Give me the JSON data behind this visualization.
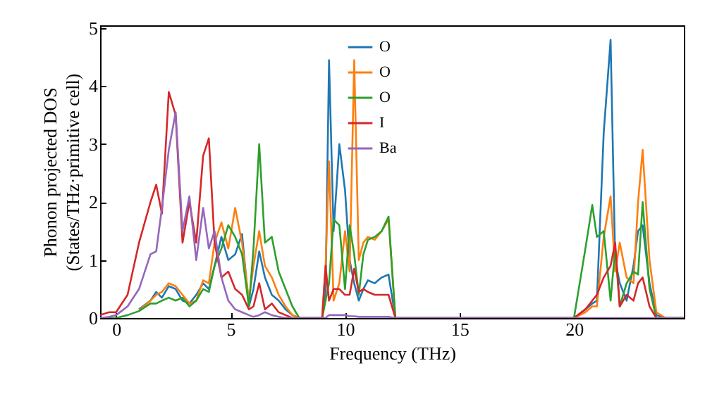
{
  "chart_data": {
    "type": "line",
    "xlabel": "Frequency (THz)",
    "ylabel": "Phonon projected DOS\n(States/THz·primitive cell)",
    "x": [
      -0.7,
      -0.3,
      0,
      0.5,
      1,
      1.5,
      1.75,
      2,
      2.3,
      2.6,
      2.9,
      3.2,
      3.5,
      3.8,
      4.05,
      4.3,
      4.6,
      4.9,
      5.2,
      5.5,
      5.8,
      6.0,
      6.25,
      6.5,
      6.8,
      7.1,
      7.4,
      7.7,
      8.0,
      9.0,
      9.15,
      9.3,
      9.5,
      9.75,
      10.0,
      10.2,
      10.4,
      10.6,
      10.8,
      11.0,
      11.3,
      11.6,
      11.9,
      12.2,
      20.0,
      20.5,
      20.8,
      21.0,
      21.3,
      21.6,
      21.8,
      22.0,
      22.3,
      22.6,
      22.8,
      23.0,
      23.3,
      23.6,
      24.0,
      24.8
    ],
    "series": [
      {
        "name": "O",
        "color": "#1f77b4",
        "values": [
          null,
          null,
          null,
          null,
          0.15,
          0.3,
          0.45,
          0.35,
          0.55,
          0.5,
          0.3,
          0.25,
          0.4,
          0.6,
          0.5,
          0.9,
          1.4,
          1.0,
          1.1,
          1.45,
          0.2,
          0.5,
          1.15,
          0.7,
          0.4,
          0.3,
          0.15,
          0.05,
          0,
          0,
          0.5,
          4.45,
          1.5,
          3.0,
          2.2,
          1.0,
          0.6,
          0.3,
          0.5,
          0.65,
          0.6,
          0.7,
          0.75,
          0,
          0,
          0.15,
          0.25,
          0.3,
          3.2,
          4.8,
          1.0,
          0.6,
          0.3,
          0.9,
          1.5,
          1.6,
          0.6,
          0.05,
          0,
          0
        ]
      },
      {
        "name": "O",
        "color": "#ff7f0e",
        "values": [
          null,
          null,
          null,
          null,
          0.13,
          0.3,
          0.4,
          0.45,
          0.6,
          0.55,
          0.4,
          0.25,
          0.3,
          0.65,
          0.6,
          1.3,
          1.65,
          1.2,
          1.9,
          1.3,
          0.3,
          0.9,
          1.5,
          0.9,
          0.7,
          0.4,
          0.2,
          0.05,
          0,
          0,
          0.9,
          2.7,
          0.3,
          0.6,
          1.5,
          0.8,
          4.45,
          1.0,
          1.3,
          1.4,
          1.35,
          1.5,
          1.7,
          0,
          0,
          0.1,
          0.2,
          0.2,
          1.4,
          2.1,
          0.8,
          1.3,
          0.7,
          0.6,
          2.0,
          2.9,
          1.0,
          0.1,
          0,
          0
        ]
      },
      {
        "name": "O",
        "color": "#2ca02c",
        "values": [
          0,
          0,
          0,
          0.05,
          0.12,
          0.25,
          0.25,
          0.3,
          0.35,
          0.3,
          0.35,
          0.2,
          0.3,
          0.5,
          0.45,
          0.9,
          1.2,
          1.6,
          1.4,
          1.1,
          0.2,
          1.2,
          3.0,
          1.3,
          1.4,
          0.8,
          0.5,
          0.2,
          0,
          0,
          0.3,
          0.6,
          1.7,
          1.6,
          0.5,
          1.6,
          1.1,
          0.4,
          1.1,
          1.35,
          1.4,
          1.5,
          1.75,
          0,
          0,
          1.2,
          1.95,
          1.4,
          1.5,
          0.3,
          1.2,
          0.2,
          0.6,
          0.8,
          0.75,
          2.0,
          0.5,
          0,
          0,
          0
        ]
      },
      {
        "name": "I",
        "color": "#d62728",
        "values": [
          0.05,
          0.1,
          0.1,
          0.4,
          1.3,
          2.0,
          2.3,
          1.8,
          3.9,
          3.5,
          1.3,
          2.0,
          1.3,
          2.8,
          3.1,
          1.3,
          0.7,
          0.8,
          0.5,
          0.4,
          0.15,
          0.2,
          0.6,
          0.15,
          0.25,
          0.1,
          0.05,
          0,
          0,
          0,
          0.9,
          0.3,
          0.5,
          0.5,
          0.4,
          0.4,
          0.85,
          0.45,
          0.5,
          0.45,
          0.4,
          0.4,
          0.4,
          0,
          0,
          0.15,
          0.3,
          0.4,
          0.7,
          0.9,
          1.3,
          0.2,
          0.4,
          0.3,
          0.6,
          0.7,
          0.2,
          0,
          0,
          0
        ]
      },
      {
        "name": "Ba",
        "color": "#9467bd",
        "values": [
          0,
          0.02,
          0.05,
          0.2,
          0.5,
          1.1,
          1.15,
          1.9,
          2.9,
          3.55,
          1.5,
          2.1,
          1.0,
          1.9,
          1.2,
          1.5,
          0.7,
          0.3,
          0.15,
          0.1,
          0.05,
          0.02,
          0.05,
          0.1,
          0.05,
          0.02,
          0,
          0,
          0,
          0,
          0,
          0.05,
          0.05,
          0.05,
          0.05,
          0.03,
          0.03,
          0.02,
          0.02,
          0.02,
          0.02,
          0.02,
          0.02,
          0,
          0,
          0,
          0,
          0,
          0,
          0,
          0,
          0,
          0,
          0,
          0,
          0,
          0,
          0,
          0,
          0
        ]
      }
    ],
    "xlim": [
      -0.7,
      24.8
    ],
    "ylim": [
      0,
      5.05
    ],
    "xticks": [
      0,
      5,
      10,
      15,
      20
    ],
    "yticks": [
      0,
      1,
      2,
      3,
      4,
      5
    ],
    "grid": false,
    "legend": "top",
    "marker": "none",
    "line_style": "solid"
  }
}
